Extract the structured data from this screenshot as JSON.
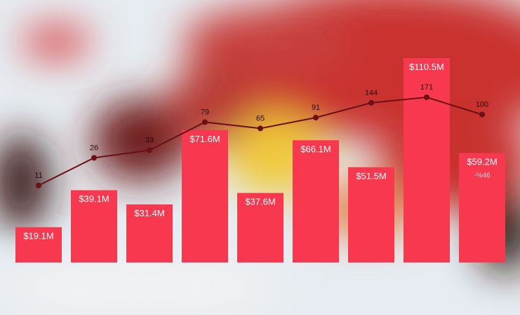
{
  "chart_data": {
    "type": "bar",
    "series": [
      {
        "type": "bar",
        "color": "#f7384f",
        "values": [
          19.1,
          39.1,
          31.4,
          71.6,
          37.6,
          66.1,
          51.5,
          110.5,
          59.2
        ],
        "value_labels": [
          "$19.1M",
          "$39.1M",
          "$31.4M",
          "$71.6M",
          "$37.6M",
          "$66.1M",
          "$51.5M",
          "$110.5M",
          "$59.2M"
        ]
      },
      {
        "type": "line",
        "axis": "y2",
        "color": "#6b1014",
        "values": [
          11,
          26,
          33,
          79,
          65,
          91,
          144,
          171,
          100
        ]
      }
    ],
    "y2_log": true,
    "annotation": "-%46"
  }
}
